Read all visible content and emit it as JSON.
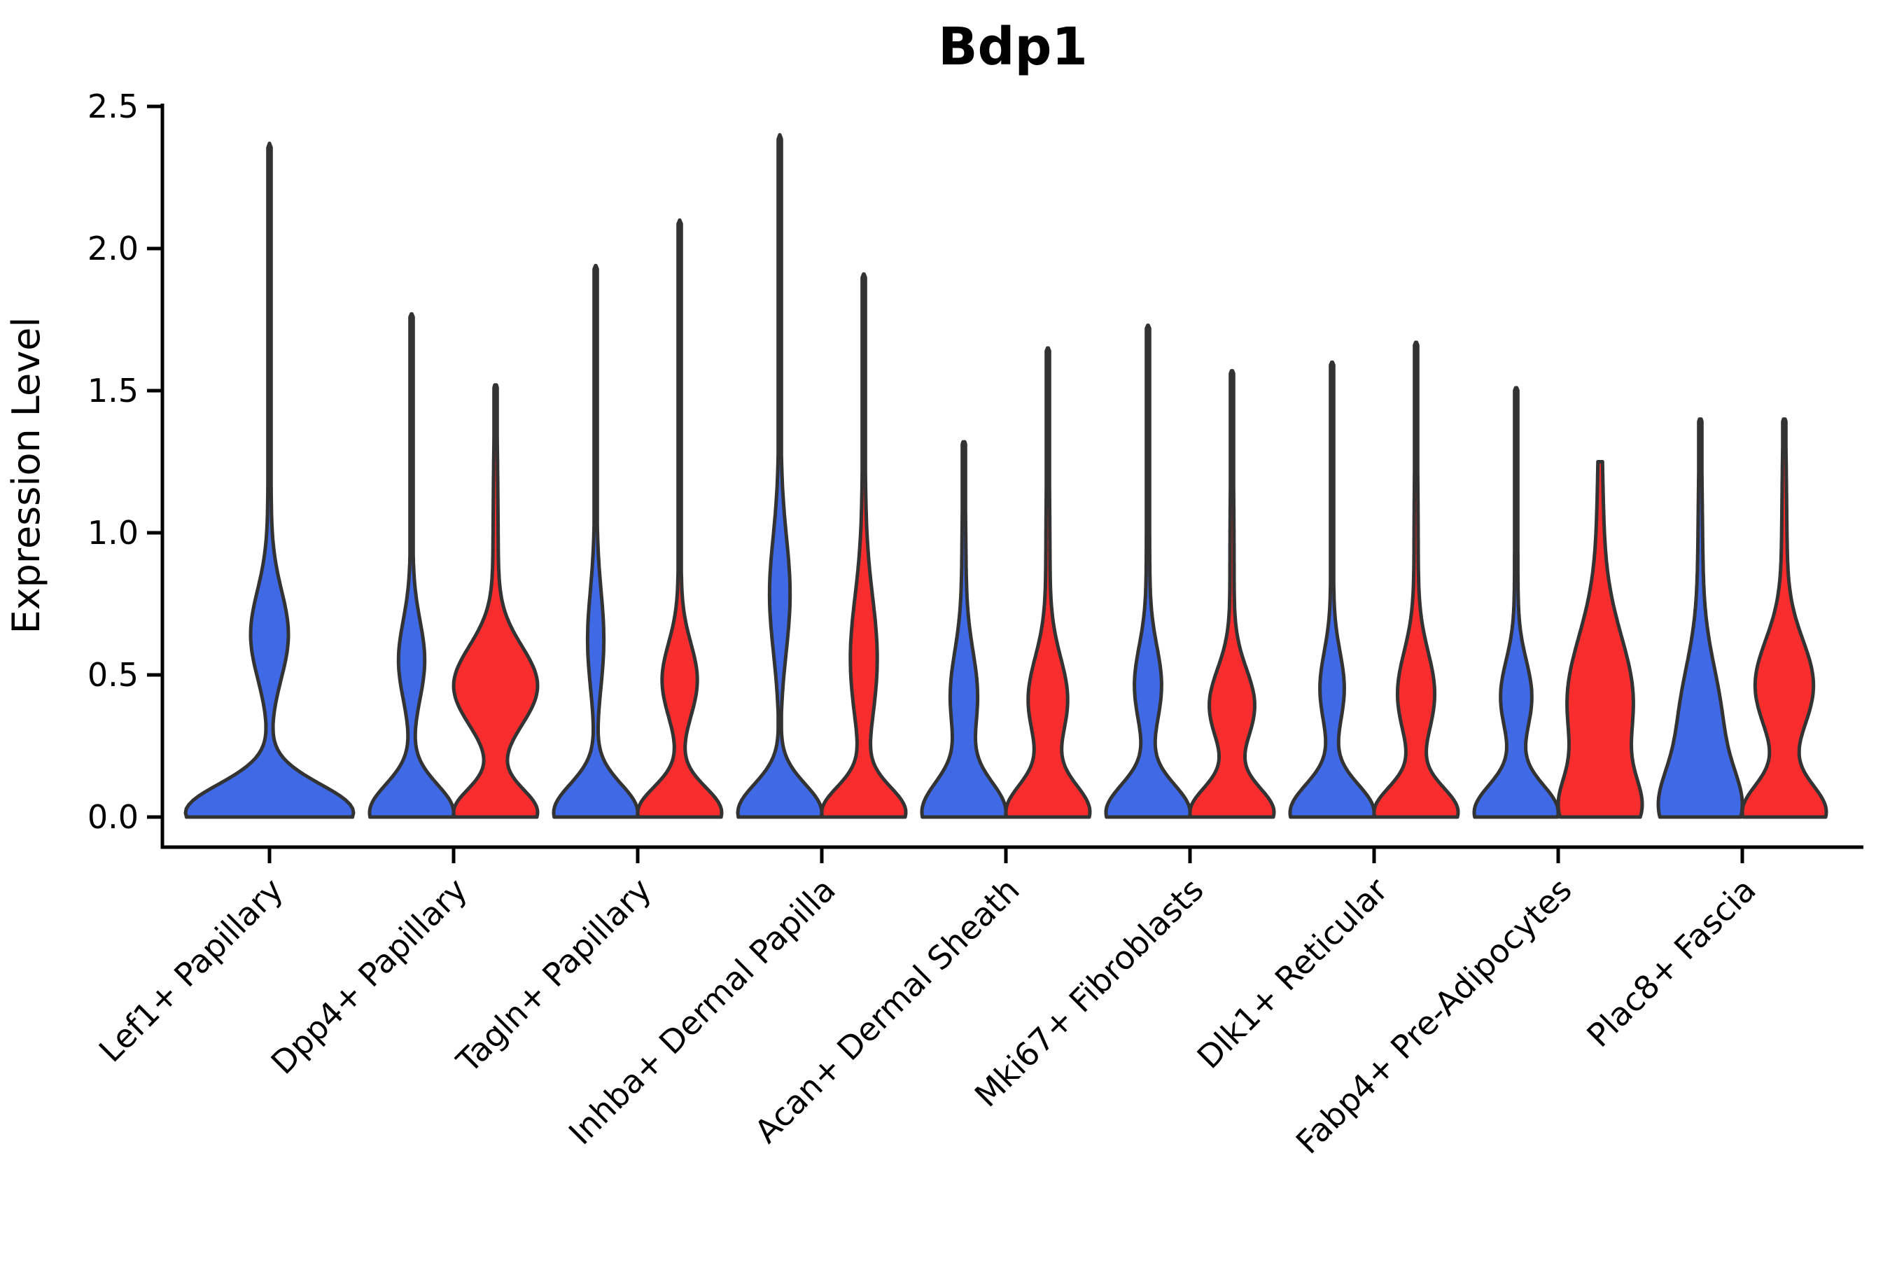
{
  "chart_data": {
    "type": "violin",
    "title": "Bdp1",
    "xlabel": "",
    "ylabel": "Expression Level",
    "ylim": [
      0,
      2.5
    ],
    "yticks": [
      "0.0",
      "0.5",
      "1.0",
      "1.5",
      "2.0",
      "2.5"
    ],
    "grid": false,
    "legend": "none",
    "categories": [
      "Lef1+ Papillary",
      "Dpp4+ Papillary",
      "Tagln+ Papillary",
      "Inhba+ Dermal Papilla",
      "Acan+ Dermal Sheath",
      "Mki67+ Fibroblasts",
      "Dlk1+ Reticular",
      "Fabp4+ Pre-Adipocytes",
      "Plac8+ Fascia"
    ],
    "series": [
      {
        "name": "blue",
        "color": "#4069E6",
        "violins": [
          {
            "present": true,
            "full_width": true,
            "max": 2.37,
            "flat": false,
            "base": [
              0.015,
              0.1,
              1.0
            ],
            "mid": [
              0.64,
              0.155,
              0.21
            ],
            "tail": [
              1.0,
              0.5,
              0.02
            ]
          },
          {
            "present": true,
            "full_width": false,
            "max": 1.77,
            "flat": false,
            "base": [
              0.015,
              0.1,
              1.0
            ],
            "mid": [
              0.55,
              0.14,
              0.29
            ],
            "tail": [
              0.9,
              0.5,
              0.03
            ]
          },
          {
            "present": true,
            "full_width": false,
            "max": 1.94,
            "flat": false,
            "base": [
              0.015,
              0.1,
              1.0
            ],
            "mid": [
              0.62,
              0.17,
              0.17
            ],
            "tail": [
              0.95,
              0.5,
              0.03
            ]
          },
          {
            "present": true,
            "full_width": false,
            "max": 2.4,
            "flat": false,
            "base": [
              0.015,
              0.1,
              1.0
            ],
            "mid": [
              0.78,
              0.2,
              0.22
            ],
            "tail": [
              1.1,
              0.55,
              0.03
            ]
          },
          {
            "present": true,
            "full_width": false,
            "max": 1.32,
            "flat": false,
            "base": [
              0.015,
              0.11,
              1.0
            ],
            "mid": [
              0.42,
              0.16,
              0.3
            ],
            "tail": [
              0.8,
              0.4,
              0.05
            ]
          },
          {
            "present": true,
            "full_width": false,
            "max": 1.73,
            "flat": false,
            "base": [
              0.015,
              0.1,
              1.0
            ],
            "mid": [
              0.46,
              0.14,
              0.3
            ],
            "tail": [
              0.9,
              0.45,
              0.04
            ]
          },
          {
            "present": true,
            "full_width": false,
            "max": 1.6,
            "flat": false,
            "base": [
              0.015,
              0.1,
              1.0
            ],
            "mid": [
              0.45,
              0.13,
              0.27
            ],
            "tail": [
              0.9,
              0.45,
              0.035
            ]
          },
          {
            "present": true,
            "full_width": false,
            "max": 1.51,
            "flat": false,
            "base": [
              0.015,
              0.1,
              1.0
            ],
            "mid": [
              0.42,
              0.13,
              0.35
            ],
            "tail": [
              0.85,
              0.45,
              0.04
            ]
          },
          {
            "present": true,
            "full_width": false,
            "max": 1.4,
            "flat": false,
            "base": [
              0.015,
              0.14,
              1.0
            ],
            "mid": [
              0.33,
              0.2,
              0.55
            ],
            "tail": [
              0.8,
              0.45,
              0.07
            ]
          }
        ]
      },
      {
        "name": "red",
        "color": "#F92D2D",
        "violins": [
          {
            "present": false
          },
          {
            "present": true,
            "full_width": false,
            "max": 1.52,
            "flat": false,
            "base": [
              0.015,
              0.085,
              0.8
            ],
            "mid": [
              0.46,
              0.14,
              0.78
            ],
            "tail": [
              0.9,
              0.45,
              0.05
            ]
          },
          {
            "present": true,
            "full_width": false,
            "max": 2.1,
            "flat": false,
            "base": [
              0.015,
              0.09,
              1.0
            ],
            "mid": [
              0.48,
              0.13,
              0.4
            ],
            "tail": [
              0.95,
              0.5,
              0.035
            ]
          },
          {
            "present": true,
            "full_width": false,
            "max": 1.91,
            "flat": false,
            "base": [
              0.015,
              0.09,
              1.0
            ],
            "mid": [
              0.55,
              0.22,
              0.3
            ],
            "tail": [
              1.0,
              0.5,
              0.04
            ]
          },
          {
            "present": true,
            "full_width": false,
            "max": 1.65,
            "flat": false,
            "base": [
              0.015,
              0.1,
              1.0
            ],
            "mid": [
              0.41,
              0.15,
              0.45
            ],
            "tail": [
              0.85,
              0.45,
              0.05
            ]
          },
          {
            "present": true,
            "full_width": false,
            "max": 1.57,
            "flat": false,
            "base": [
              0.015,
              0.09,
              1.0
            ],
            "mid": [
              0.39,
              0.13,
              0.52
            ],
            "tail": [
              0.85,
              0.45,
              0.05
            ]
          },
          {
            "present": true,
            "full_width": false,
            "max": 1.67,
            "flat": false,
            "base": [
              0.015,
              0.09,
              1.0
            ],
            "mid": [
              0.43,
              0.15,
              0.42
            ],
            "tail": [
              0.9,
              0.45,
              0.05
            ]
          },
          {
            "present": true,
            "full_width": false,
            "max": 1.25,
            "flat": true,
            "base": [
              0.015,
              0.12,
              1.0
            ],
            "mid": [
              0.4,
              0.23,
              0.95
            ],
            "tail": [
              0.9,
              0.4,
              0.1
            ]
          },
          {
            "present": true,
            "full_width": false,
            "max": 1.4,
            "flat": false,
            "base": [
              0.015,
              0.1,
              0.9
            ],
            "mid": [
              0.46,
              0.16,
              0.6
            ],
            "tail": [
              0.85,
              0.45,
              0.06
            ]
          }
        ]
      }
    ],
    "style": {
      "outline_color": "#333333",
      "text_color": "#000000",
      "background": "#ffffff"
    }
  }
}
